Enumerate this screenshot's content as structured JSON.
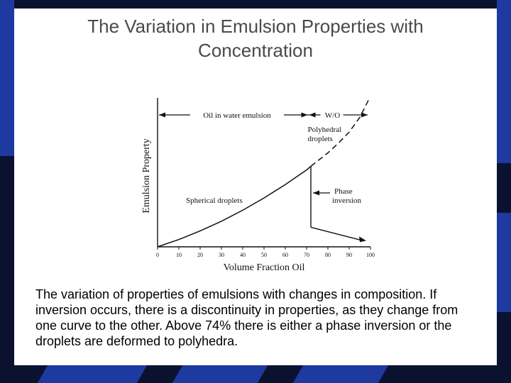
{
  "slide": {
    "title_line1": "The Variation in Emulsion Properties with",
    "title_line2": "Concentration",
    "caption": "The variation of properties of emulsions with changes in composition. If inversion occurs, there is a discontinuity in properties, as they change from one curve to the other. Above 74% there is either a phase inversion or the droplets are deformed to polyhedra."
  },
  "colors": {
    "background": "#0a1230",
    "stripe": "#1e3aa0",
    "slide": "#ffffff",
    "title": "#4a4a4a"
  },
  "chart_data": {
    "type": "line",
    "xlabel": "Volume Fraction Oil",
    "ylabel": "Emulsion Property",
    "xlim": [
      0,
      100
    ],
    "ticks": [
      "0",
      "10",
      "20",
      "30",
      "40",
      "50",
      "60",
      "70",
      "80",
      "90",
      "100"
    ],
    "series": [
      {
        "style": "solid",
        "x": [
          0,
          10,
          20,
          30,
          40,
          50,
          60,
          70,
          72
        ],
        "y": [
          0,
          6,
          13,
          21,
          30,
          40,
          51,
          63,
          66
        ]
      },
      {
        "style": "dashed",
        "x": [
          72,
          80,
          85,
          90,
          95,
          97,
          99
        ],
        "y": [
          66,
          77,
          85,
          94,
          106,
          113,
          120
        ]
      }
    ],
    "inversion": {
      "x": 72,
      "y_top": 66,
      "y_bottom": 16,
      "arrow_end": {
        "x": 98,
        "y": 5
      }
    },
    "annotations": {
      "oil_in_water": "Oil in water emulsion",
      "w_o": "W/O",
      "polyhedral_1": "Polyhedral",
      "polyhedral_2": "droplets",
      "spherical": "Spherical droplets",
      "phase_1": "Phase",
      "phase_2": "inversion"
    }
  }
}
